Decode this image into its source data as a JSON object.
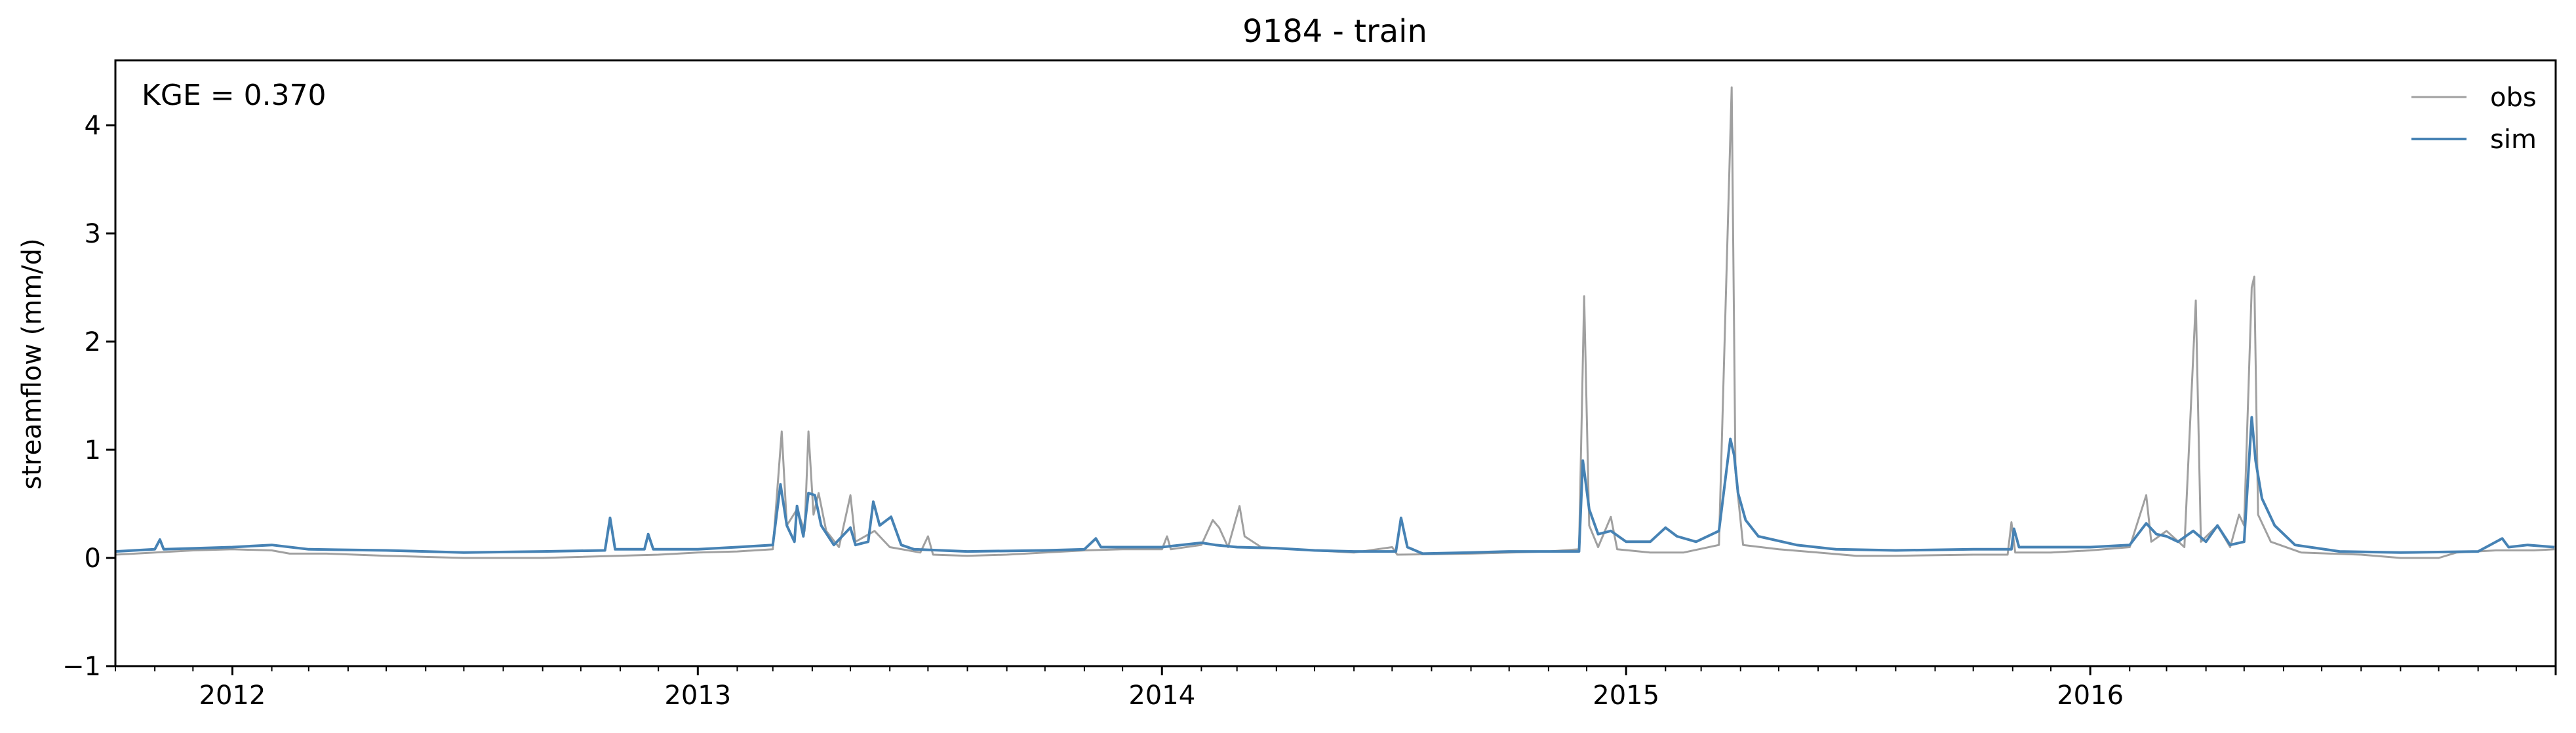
{
  "chart_data": {
    "type": "line",
    "title": "9184 - train",
    "xlabel": "",
    "ylabel": "streamflow (mm/d)",
    "xlim": [
      "2011-10-01",
      "2016-12-31"
    ],
    "ylim": [
      -1,
      4.6
    ],
    "x_tick_labels": [
      {
        "date": "2012-01-01",
        "label": "2012"
      },
      {
        "date": "2013-01-01",
        "label": "2013"
      },
      {
        "date": "2014-01-01",
        "label": "2014"
      },
      {
        "date": "2015-01-01",
        "label": "2015"
      },
      {
        "date": "2016-01-01",
        "label": "2016"
      }
    ],
    "y_ticks": [
      -1,
      0,
      1,
      2,
      3,
      4
    ],
    "y_tick_labels": [
      "−1",
      "0",
      "1",
      "2",
      "3",
      "4"
    ],
    "grid": false,
    "legend_position": "top-right",
    "annotation": "KGE = 0.370",
    "series": [
      {
        "name": "obs",
        "color": "#a0a0a0",
        "points": [
          [
            "2011-10-01",
            0.03
          ],
          [
            "2011-11-01",
            0.05
          ],
          [
            "2011-12-01",
            0.07
          ],
          [
            "2012-01-01",
            0.08
          ],
          [
            "2012-02-01",
            0.07
          ],
          [
            "2012-02-15",
            0.04
          ],
          [
            "2012-03-15",
            0.04
          ],
          [
            "2012-05-01",
            0.02
          ],
          [
            "2012-07-01",
            0.0
          ],
          [
            "2012-09-01",
            0.0
          ],
          [
            "2012-12-01",
            0.03
          ],
          [
            "2013-01-01",
            0.05
          ],
          [
            "2013-02-01",
            0.06
          ],
          [
            "2013-03-01",
            0.08
          ],
          [
            "2013-03-08",
            1.17
          ],
          [
            "2013-03-12",
            0.3
          ],
          [
            "2013-03-20",
            0.45
          ],
          [
            "2013-03-26",
            0.25
          ],
          [
            "2013-03-29",
            1.17
          ],
          [
            "2013-04-02",
            0.4
          ],
          [
            "2013-04-06",
            0.6
          ],
          [
            "2013-04-12",
            0.25
          ],
          [
            "2013-04-22",
            0.1
          ],
          [
            "2013-05-01",
            0.58
          ],
          [
            "2013-05-05",
            0.15
          ],
          [
            "2013-05-20",
            0.25
          ],
          [
            "2013-06-01",
            0.1
          ],
          [
            "2013-06-25",
            0.05
          ],
          [
            "2013-07-01",
            0.2
          ],
          [
            "2013-07-05",
            0.03
          ],
          [
            "2013-08-01",
            0.02
          ],
          [
            "2013-09-01",
            0.03
          ],
          [
            "2013-10-01",
            0.05
          ],
          [
            "2013-11-01",
            0.07
          ],
          [
            "2013-12-01",
            0.08
          ],
          [
            "2014-01-01",
            0.08
          ],
          [
            "2014-01-05",
            0.2
          ],
          [
            "2014-01-08",
            0.08
          ],
          [
            "2014-02-01",
            0.12
          ],
          [
            "2014-02-10",
            0.35
          ],
          [
            "2014-02-15",
            0.28
          ],
          [
            "2014-02-22",
            0.1
          ],
          [
            "2014-03-03",
            0.48
          ],
          [
            "2014-03-07",
            0.2
          ],
          [
            "2014-03-20",
            0.1
          ],
          [
            "2014-05-01",
            0.07
          ],
          [
            "2014-06-01",
            0.05
          ],
          [
            "2014-07-01",
            0.1
          ],
          [
            "2014-07-05",
            0.03
          ],
          [
            "2014-09-01",
            0.04
          ],
          [
            "2014-11-01",
            0.06
          ],
          [
            "2014-11-25",
            0.08
          ],
          [
            "2014-11-29",
            2.42
          ],
          [
            "2014-12-03",
            0.3
          ],
          [
            "2014-12-10",
            0.1
          ],
          [
            "2014-12-20",
            0.38
          ],
          [
            "2014-12-25",
            0.08
          ],
          [
            "2015-01-20",
            0.05
          ],
          [
            "2015-02-15",
            0.05
          ],
          [
            "2015-03-15",
            0.12
          ],
          [
            "2015-03-25",
            4.35
          ],
          [
            "2015-03-28",
            0.8
          ],
          [
            "2015-04-03",
            0.12
          ],
          [
            "2015-05-01",
            0.08
          ],
          [
            "2015-06-01",
            0.05
          ],
          [
            "2015-07-01",
            0.02
          ],
          [
            "2015-08-01",
            0.02
          ],
          [
            "2015-10-01",
            0.03
          ],
          [
            "2015-10-28",
            0.03
          ],
          [
            "2015-10-31",
            0.33
          ],
          [
            "2015-11-03",
            0.05
          ],
          [
            "2015-12-01",
            0.05
          ],
          [
            "2016-01-01",
            0.07
          ],
          [
            "2016-02-01",
            0.1
          ],
          [
            "2016-02-14",
            0.58
          ],
          [
            "2016-02-18",
            0.15
          ],
          [
            "2016-03-01",
            0.25
          ],
          [
            "2016-03-15",
            0.1
          ],
          [
            "2016-03-24",
            2.38
          ],
          [
            "2016-03-28",
            0.15
          ],
          [
            "2016-04-10",
            0.3
          ],
          [
            "2016-04-20",
            0.1
          ],
          [
            "2016-04-27",
            0.4
          ],
          [
            "2016-05-01",
            0.3
          ],
          [
            "2016-05-07",
            2.5
          ],
          [
            "2016-05-09",
            2.6
          ],
          [
            "2016-05-12",
            0.4
          ],
          [
            "2016-05-22",
            0.15
          ],
          [
            "2016-06-15",
            0.05
          ],
          [
            "2016-08-01",
            0.03
          ],
          [
            "2016-09-01",
            0.0
          ],
          [
            "2016-10-01",
            0.0
          ],
          [
            "2016-10-15",
            0.05
          ],
          [
            "2016-11-15",
            0.07
          ],
          [
            "2016-12-15",
            0.07
          ],
          [
            "2016-12-31",
            0.08
          ]
        ]
      },
      {
        "name": "sim",
        "color": "#4682b4",
        "points": [
          [
            "2011-10-01",
            0.06
          ],
          [
            "2011-11-01",
            0.08
          ],
          [
            "2011-11-05",
            0.17
          ],
          [
            "2011-11-08",
            0.08
          ],
          [
            "2012-01-01",
            0.1
          ],
          [
            "2012-02-01",
            0.12
          ],
          [
            "2012-03-01",
            0.08
          ],
          [
            "2012-05-01",
            0.07
          ],
          [
            "2012-07-01",
            0.05
          ],
          [
            "2012-09-01",
            0.06
          ],
          [
            "2012-10-20",
            0.07
          ],
          [
            "2012-10-24",
            0.37
          ],
          [
            "2012-10-28",
            0.08
          ],
          [
            "2012-11-20",
            0.08
          ],
          [
            "2012-11-23",
            0.22
          ],
          [
            "2012-11-27",
            0.08
          ],
          [
            "2013-01-01",
            0.08
          ],
          [
            "2013-02-01",
            0.1
          ],
          [
            "2013-03-01",
            0.12
          ],
          [
            "2013-03-07",
            0.68
          ],
          [
            "2013-03-12",
            0.3
          ],
          [
            "2013-03-18",
            0.15
          ],
          [
            "2013-03-20",
            0.48
          ],
          [
            "2013-03-25",
            0.2
          ],
          [
            "2013-03-29",
            0.6
          ],
          [
            "2013-04-03",
            0.58
          ],
          [
            "2013-04-08",
            0.3
          ],
          [
            "2013-04-18",
            0.12
          ],
          [
            "2013-05-01",
            0.28
          ],
          [
            "2013-05-05",
            0.12
          ],
          [
            "2013-05-15",
            0.15
          ],
          [
            "2013-05-19",
            0.52
          ],
          [
            "2013-05-24",
            0.3
          ],
          [
            "2013-06-02",
            0.38
          ],
          [
            "2013-06-10",
            0.12
          ],
          [
            "2013-06-20",
            0.08
          ],
          [
            "2013-08-01",
            0.06
          ],
          [
            "2013-10-01",
            0.07
          ],
          [
            "2013-11-01",
            0.08
          ],
          [
            "2013-11-10",
            0.18
          ],
          [
            "2013-11-14",
            0.1
          ],
          [
            "2014-01-01",
            0.1
          ],
          [
            "2014-02-01",
            0.14
          ],
          [
            "2014-02-12",
            0.12
          ],
          [
            "2014-03-01",
            0.1
          ],
          [
            "2014-04-01",
            0.09
          ],
          [
            "2014-05-01",
            0.07
          ],
          [
            "2014-06-01",
            0.06
          ],
          [
            "2014-07-04",
            0.06
          ],
          [
            "2014-07-08",
            0.37
          ],
          [
            "2014-07-13",
            0.1
          ],
          [
            "2014-07-25",
            0.04
          ],
          [
            "2014-09-01",
            0.05
          ],
          [
            "2014-10-01",
            0.06
          ],
          [
            "2014-11-25",
            0.06
          ],
          [
            "2014-11-28",
            0.9
          ],
          [
            "2014-12-03",
            0.45
          ],
          [
            "2014-12-10",
            0.22
          ],
          [
            "2014-12-20",
            0.25
          ],
          [
            "2015-01-01",
            0.15
          ],
          [
            "2015-01-20",
            0.15
          ],
          [
            "2015-02-01",
            0.28
          ],
          [
            "2015-02-10",
            0.2
          ],
          [
            "2015-02-25",
            0.15
          ],
          [
            "2015-03-15",
            0.25
          ],
          [
            "2015-03-24",
            1.1
          ],
          [
            "2015-03-27",
            0.95
          ],
          [
            "2015-03-30",
            0.6
          ],
          [
            "2015-04-05",
            0.35
          ],
          [
            "2015-04-15",
            0.2
          ],
          [
            "2015-05-15",
            0.12
          ],
          [
            "2015-06-15",
            0.08
          ],
          [
            "2015-08-01",
            0.07
          ],
          [
            "2015-10-01",
            0.08
          ],
          [
            "2015-10-31",
            0.08
          ],
          [
            "2015-11-02",
            0.27
          ],
          [
            "2015-11-06",
            0.1
          ],
          [
            "2016-01-01",
            0.1
          ],
          [
            "2016-02-01",
            0.12
          ],
          [
            "2016-02-14",
            0.32
          ],
          [
            "2016-02-22",
            0.22
          ],
          [
            "2016-03-01",
            0.2
          ],
          [
            "2016-03-10",
            0.15
          ],
          [
            "2016-03-22",
            0.25
          ],
          [
            "2016-04-01",
            0.15
          ],
          [
            "2016-04-10",
            0.3
          ],
          [
            "2016-04-20",
            0.12
          ],
          [
            "2016-05-01",
            0.15
          ],
          [
            "2016-05-07",
            1.3
          ],
          [
            "2016-05-10",
            0.9
          ],
          [
            "2016-05-15",
            0.55
          ],
          [
            "2016-05-25",
            0.3
          ],
          [
            "2016-06-10",
            0.12
          ],
          [
            "2016-07-15",
            0.06
          ],
          [
            "2016-09-01",
            0.05
          ],
          [
            "2016-11-01",
            0.06
          ],
          [
            "2016-11-20",
            0.18
          ],
          [
            "2016-11-25",
            0.1
          ],
          [
            "2016-12-10",
            0.12
          ],
          [
            "2016-12-31",
            0.1
          ]
        ]
      }
    ]
  }
}
